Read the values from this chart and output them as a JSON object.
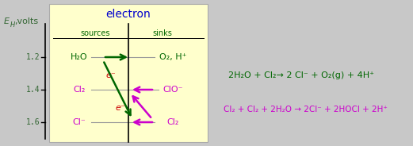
{
  "fig_w": 5.21,
  "fig_h": 1.84,
  "bg_color": "#c8c8c8",
  "panel_color": "#ffffcc",
  "panel_border": "#aaaaaa",
  "title_text": "electron",
  "title_color": "#0000cc",
  "sources_text": "sources",
  "sinks_text": "sinks",
  "header_color": "#006600",
  "axis_label": "E",
  "axis_sub": "H",
  "axis_unit": ",volts",
  "axis_color": "#336633",
  "ytick_labels": [
    "1.2",
    "1.4",
    "1.6"
  ],
  "ytick_vals": [
    0.72,
    0.45,
    0.18
  ],
  "left_labels": [
    "H₂O",
    "Cl₂",
    "Cl⁻"
  ],
  "left_colors": [
    "#006600",
    "#cc00cc",
    "#cc00cc"
  ],
  "right_labels": [
    "O₂, H⁺",
    "ClO⁻",
    "Cl₂"
  ],
  "right_colors": [
    "#006600",
    "#cc00cc",
    "#cc00cc"
  ],
  "eq1": "2H₂O + Cl₂→ 2 Cl⁻ + O₂(g) + 4H⁺",
  "eq1_color": "#006600",
  "eq2": "Cl₂ + Cl₂ + 2H₂O → 2Cl⁻ + 2HOCl + 2H⁺",
  "eq2_color": "#cc00cc",
  "green_color": "#006600",
  "magenta_color": "#cc00cc",
  "red_color": "#cc0000",
  "gray_color": "#999999"
}
